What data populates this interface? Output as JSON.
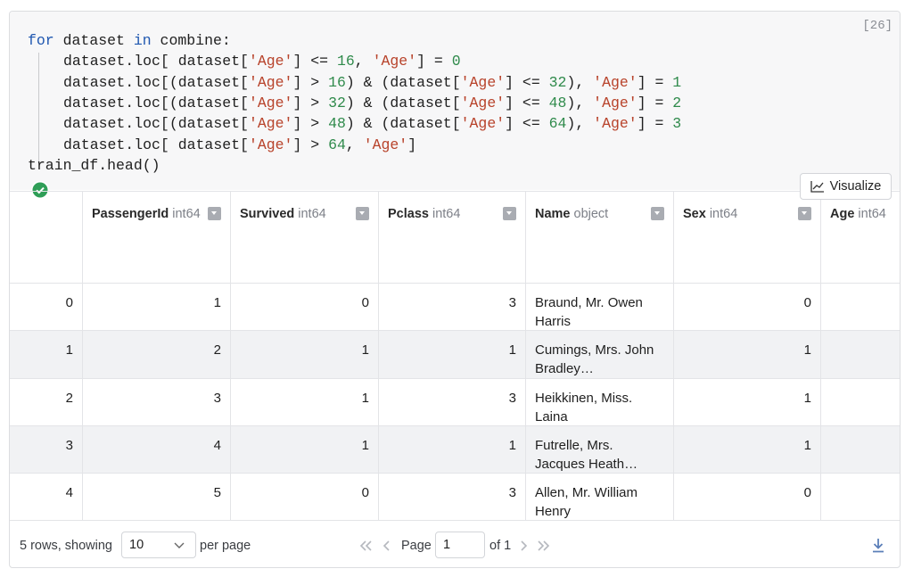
{
  "cell": {
    "execution_count": "[26]"
  },
  "code": {
    "lines": [
      [
        {
          "text": "for",
          "color": "#1f57b0"
        },
        " dataset ",
        {
          "text": "in",
          "color": "#1f57b0"
        },
        " combine:"
      ],
      [
        "dataset.loc[ dataset[",
        {
          "text": "'Age'",
          "color": "#b8432b"
        },
        "] <= ",
        {
          "text": "16",
          "color": "#2f8a4b"
        },
        ", ",
        {
          "text": "'Age'",
          "color": "#b8432b"
        },
        "] = ",
        {
          "text": "0",
          "color": "#2f8a4b"
        }
      ],
      [
        "dataset.loc[(dataset[",
        {
          "text": "'Age'",
          "color": "#b8432b"
        },
        "] > ",
        {
          "text": "16",
          "color": "#2f8a4b"
        },
        ") & (dataset[",
        {
          "text": "'Age'",
          "color": "#b8432b"
        },
        "] <= ",
        {
          "text": "32",
          "color": "#2f8a4b"
        },
        "), ",
        {
          "text": "'Age'",
          "color": "#b8432b"
        },
        "] = ",
        {
          "text": "1",
          "color": "#2f8a4b"
        }
      ],
      [
        "dataset.loc[(dataset[",
        {
          "text": "'Age'",
          "color": "#b8432b"
        },
        "] > ",
        {
          "text": "32",
          "color": "#2f8a4b"
        },
        ") & (dataset[",
        {
          "text": "'Age'",
          "color": "#b8432b"
        },
        "] <= ",
        {
          "text": "48",
          "color": "#2f8a4b"
        },
        "), ",
        {
          "text": "'Age'",
          "color": "#b8432b"
        },
        "] = ",
        {
          "text": "2",
          "color": "#2f8a4b"
        }
      ],
      [
        "dataset.loc[(dataset[",
        {
          "text": "'Age'",
          "color": "#b8432b"
        },
        "] > ",
        {
          "text": "48",
          "color": "#2f8a4b"
        },
        ") & (dataset[",
        {
          "text": "'Age'",
          "color": "#b8432b"
        },
        "] <= ",
        {
          "text": "64",
          "color": "#2f8a4b"
        },
        "), ",
        {
          "text": "'Age'",
          "color": "#b8432b"
        },
        "] = ",
        {
          "text": "3",
          "color": "#2f8a4b"
        }
      ],
      [
        "dataset.loc[ dataset[",
        {
          "text": "'Age'",
          "color": "#b8432b"
        },
        "] > ",
        {
          "text": "64",
          "color": "#2f8a4b"
        },
        ", ",
        {
          "text": "'Age'",
          "color": "#b8432b"
        },
        "]"
      ],
      [
        "train_df.head()"
      ]
    ]
  },
  "toolbar": {
    "visualize": "Visualize"
  },
  "table": {
    "columns": [
      {
        "name": "PassengerId",
        "dtype": "int64"
      },
      {
        "name": "Survived",
        "dtype": "int64"
      },
      {
        "name": "Pclass",
        "dtype": "int64"
      },
      {
        "name": "Name",
        "dtype": "object"
      },
      {
        "name": "Sex",
        "dtype": "int64"
      },
      {
        "name": "Age",
        "dtype": "int64"
      }
    ],
    "rows": [
      [
        0,
        1,
        0,
        3,
        "Braund, Mr. Owen Harris",
        0
      ],
      [
        1,
        2,
        1,
        1,
        "Cumings, Mrs. John Bradley…",
        1
      ],
      [
        2,
        3,
        1,
        3,
        "Heikkinen, Miss. Laina",
        1
      ],
      [
        3,
        4,
        1,
        1,
        "Futrelle, Mrs. Jacques Heath…",
        1
      ],
      [
        4,
        5,
        0,
        3,
        "Allen, Mr. William Henry",
        0
      ]
    ]
  },
  "footer": {
    "rows_text": "5 rows, showing",
    "page_size": "10",
    "per_page": "per page",
    "page_label": "Page",
    "page": "1",
    "of_pages": "of 1"
  }
}
